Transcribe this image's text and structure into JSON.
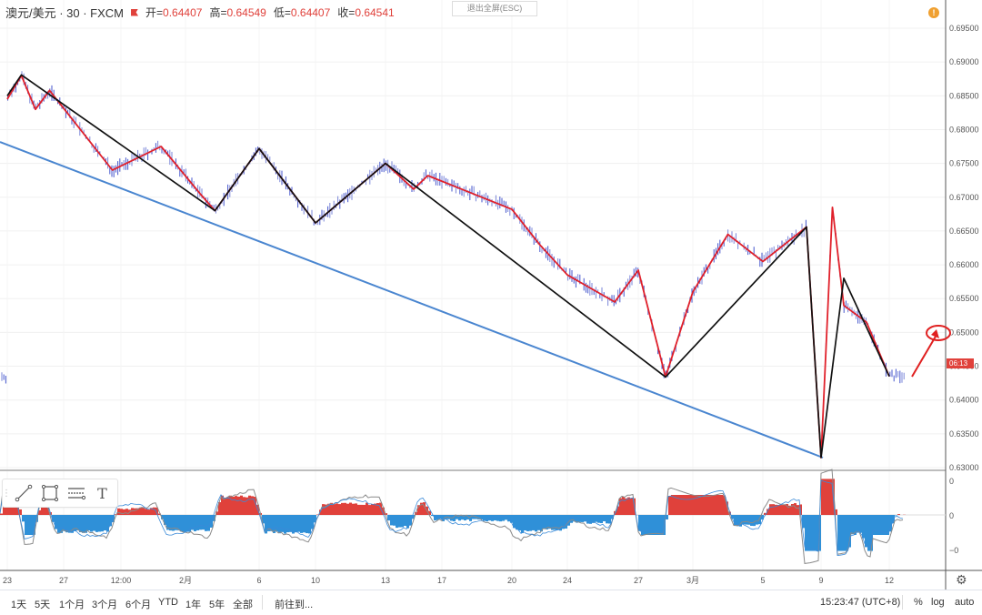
{
  "legend": {
    "symbol": "澳元/美元 · 30 · FXCM",
    "open_label": "开",
    "open_value": "0.64407",
    "high_label": "高",
    "high_value": "0.64549",
    "low_label": "低",
    "low_value": "0.64407",
    "close_label": "收",
    "close_value": "0.64541"
  },
  "exit_fullscreen": "退出全屏(ESC)",
  "alert_icon": "!",
  "price_axis": {
    "labels": [
      "0.69500",
      "0.69000",
      "0.68500",
      "0.68000",
      "0.67500",
      "0.67000",
      "0.66500",
      "0.66000",
      "0.65500",
      "0.65000",
      "0.64500",
      "0.64000",
      "0.63500",
      "0.63000"
    ],
    "countdown": "06:13"
  },
  "indicator_axis": {
    "labels": [
      "0",
      "0",
      "−0"
    ]
  },
  "time_axis": {
    "labels": [
      "23",
      "27",
      "12:00",
      "2月",
      "6",
      "10",
      "13",
      "17",
      "20",
      "24",
      "27",
      "3月",
      "5",
      "9",
      "12"
    ]
  },
  "toolbar": {
    "icons": [
      "trend-line-icon",
      "rectangle-icon",
      "parallel-channel-icon",
      "text-tool-icon"
    ],
    "text_tool_glyph": "T"
  },
  "bottom_bar": {
    "ranges": [
      "1天",
      "5天",
      "1个月",
      "3个月",
      "6个月",
      "YTD",
      "1年",
      "5年",
      "全部"
    ],
    "goto": "前往到...",
    "time": "15:23:47 (UTC+8)",
    "percent": "%",
    "log": "log",
    "auto": "auto"
  },
  "colors": {
    "red_zigzag": "#e0202a",
    "black_zigzag": "#111111",
    "trendline": "#4a86d0",
    "histogram_pos": "#e0413b",
    "histogram_neg": "#2f90d8",
    "candle": "#4455cc"
  },
  "chart_data": {
    "type": "line",
    "symbol": "AUD/USD 30m FXCM",
    "ylim": [
      0.63,
      0.695
    ],
    "series": [
      {
        "name": "",
        "description_color": "black",
        "points": [
          {
            "x": "Jan 23",
            "y": 0.685
          },
          {
            "x": "Jan 24",
            "y": 0.6881
          },
          {
            "x": "Feb 3",
            "y": 0.668
          },
          {
            "x": "Feb 6",
            "y": 0.6772
          },
          {
            "x": "Feb 10",
            "y": 0.6662
          },
          {
            "x": "Feb 13",
            "y": 0.675
          },
          {
            "x": "Feb 28",
            "y": 0.6434
          },
          {
            "x": "Mar 8",
            "y": 0.6656
          },
          {
            "x": "Mar 9",
            "y": 0.6315
          },
          {
            "x": "Mar 10",
            "y": 0.658
          },
          {
            "x": "Mar 12",
            "y": 0.6435
          }
        ]
      },
      {
        "name": "",
        "description_color": "red",
        "points": [
          {
            "x": "Jan 23",
            "y": 0.6845
          },
          {
            "x": "Jan 24",
            "y": 0.688
          },
          {
            "x": "Jan 25",
            "y": 0.683
          },
          {
            "x": "Jan 26",
            "y": 0.6858
          },
          {
            "x": "Jan 29",
            "y": 0.674
          },
          {
            "x": "Jan 31",
            "y": 0.6775
          },
          {
            "x": "Feb 2",
            "y": 0.6705
          },
          {
            "x": "Feb 3",
            "y": 0.668
          },
          {
            "x": "Feb 6",
            "y": 0.6772
          },
          {
            "x": "Feb 10",
            "y": 0.6662
          },
          {
            "x": "Feb 13",
            "y": 0.675
          },
          {
            "x": "Feb 15",
            "y": 0.6712
          },
          {
            "x": "Feb 16",
            "y": 0.6732
          },
          {
            "x": "Feb 20",
            "y": 0.6682
          },
          {
            "x": "Feb 22",
            "y": 0.663
          },
          {
            "x": "Feb 24",
            "y": 0.6585
          },
          {
            "x": "Feb 26",
            "y": 0.6545
          },
          {
            "x": "Feb 27",
            "y": 0.6592
          },
          {
            "x": "Feb 28",
            "y": 0.6434
          },
          {
            "x": "Mar 1",
            "y": 0.656
          },
          {
            "x": "Mar 3",
            "y": 0.6645
          },
          {
            "x": "Mar 5",
            "y": 0.6605
          },
          {
            "x": "Mar 8",
            "y": 0.6656
          },
          {
            "x": "Mar 9",
            "y": 0.6315
          },
          {
            "x": "Mar 9 pm",
            "y": 0.6685
          },
          {
            "x": "Mar 10",
            "y": 0.654
          },
          {
            "x": "Mar 11",
            "y": 0.6515
          },
          {
            "x": "Mar 12",
            "y": 0.6435
          }
        ]
      },
      {
        "name": "",
        "description_color": "blue",
        "type": "trendline",
        "points": [
          {
            "x": "Jan 23",
            "y": 0.6783
          },
          {
            "x": "Mar 9",
            "y": 0.6315
          }
        ]
      }
    ],
    "current_price": 0.6454,
    "indicator_pane": {
      "ylim": [
        -1,
        1
      ],
      "tick_labels": [
        "0",
        "0",
        "−0"
      ]
    }
  }
}
